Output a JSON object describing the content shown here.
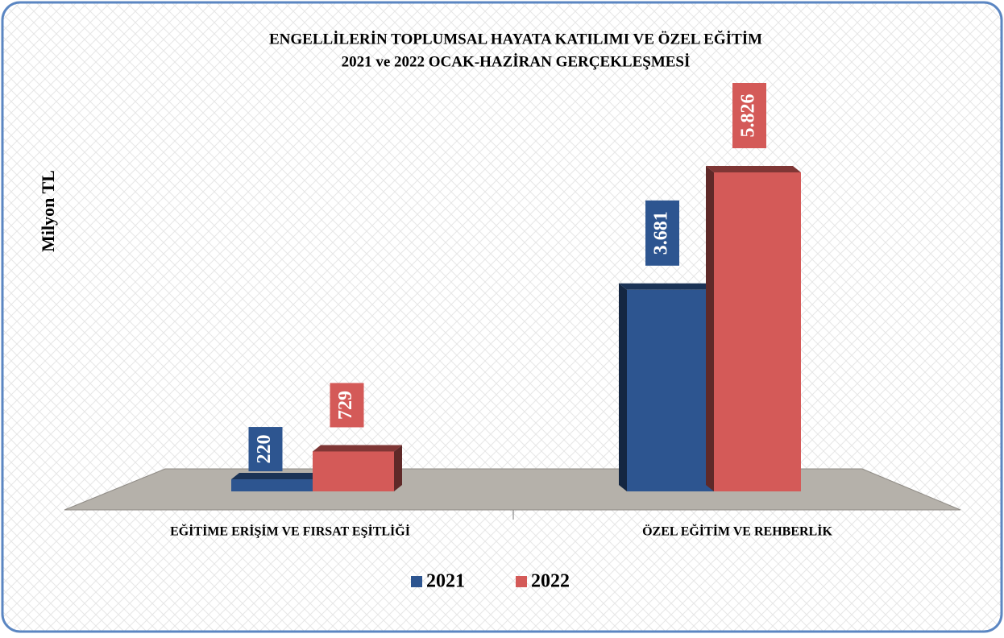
{
  "chart_data": {
    "type": "bar3d",
    "title": [
      "ENGELLİLERİN TOPLUMSAL HAYATA KATILIMI VE ÖZEL EĞİTİM",
      "2021 ve 2022 OCAK-HAZİRAN GERÇEKLEŞMESİ"
    ],
    "ylabel": "Milyon TL",
    "categories": [
      "EĞİTİME ERİŞİM VE FIRSAT EŞİTLİĞİ",
      "ÖZEL EĞİTİM VE REHBERLİK"
    ],
    "series": [
      {
        "name": "2021",
        "color": "#2d5590",
        "values": [
          220,
          3681
        ],
        "value_labels": [
          "220",
          "3.681"
        ]
      },
      {
        "name": "2022",
        "color": "#d45a58",
        "values": [
          729,
          5826
        ],
        "value_labels": [
          "729",
          "5.826"
        ]
      }
    ],
    "legend": "bottom"
  }
}
